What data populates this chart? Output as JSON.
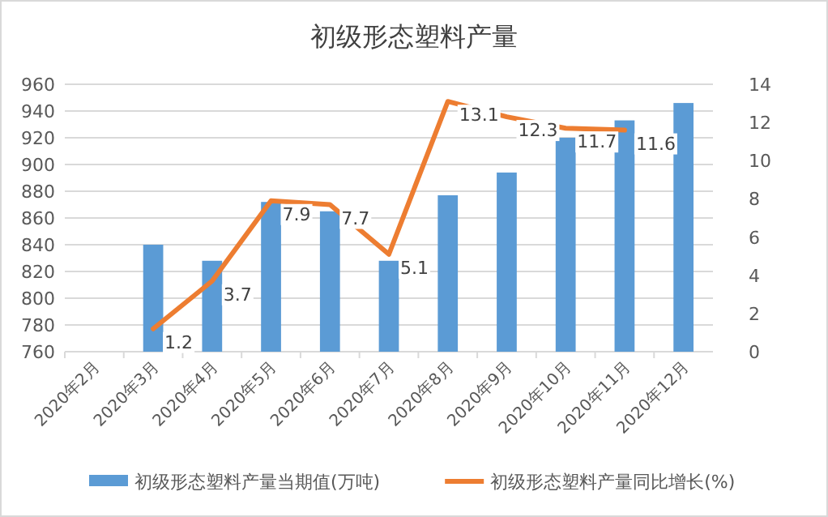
{
  "chart_data": {
    "type": "bar",
    "title": "初级形态塑料产量",
    "categories": [
      "2020年2月",
      "2020年3月",
      "2020年4月",
      "2020年5月",
      "2020年6月",
      "2020年7月",
      "2020年8月",
      "2020年9月",
      "2020年10月",
      "2020年11月",
      "2020年12月"
    ],
    "series": [
      {
        "name": "初级形态塑料产量当期值(万吨)",
        "color": "#5b9bd5",
        "values": [
          null,
          840,
          828,
          872,
          865,
          828,
          877,
          894,
          920,
          933,
          946
        ]
      },
      {
        "name": "初级形态塑料产量同比增长(%)",
        "type": "line",
        "axis": "y2",
        "color": "#ed7d31",
        "values": [
          null,
          1.2,
          3.7,
          7.9,
          7.7,
          5.1,
          13.1,
          12.3,
          11.7,
          11.6,
          null
        ],
        "value_labels": [
          null,
          "1.2",
          "3.7",
          "7.9",
          "7.7",
          "5.1",
          "13.1",
          "12.3",
          "11.7",
          "11.6",
          null
        ]
      }
    ],
    "ylim": [
      760,
      960
    ],
    "yticks": [
      760,
      780,
      800,
      820,
      840,
      860,
      880,
      900,
      920,
      940,
      960
    ],
    "y2lim": [
      0,
      14
    ],
    "y2ticks": [
      0,
      2,
      4,
      6,
      8,
      10,
      12,
      14
    ],
    "grid": "y",
    "legend": "bottom"
  }
}
